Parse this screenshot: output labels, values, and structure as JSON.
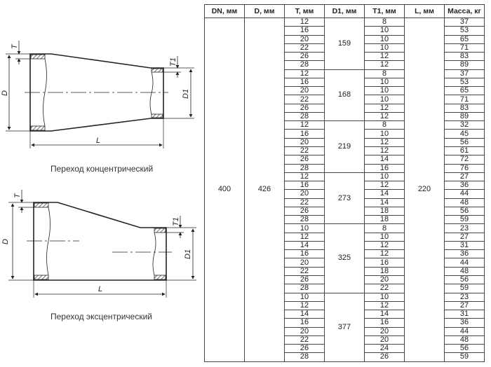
{
  "drawings": {
    "concentric": {
      "caption": "Переход концентрический",
      "labels": {
        "D": "D",
        "D1": "D1",
        "T": "T",
        "T1": "T1",
        "L": "L"
      }
    },
    "eccentric": {
      "caption": "Переход эксцентрический",
      "labels": {
        "D": "D",
        "D1": "D1",
        "T": "T",
        "T1": "T1",
        "L": "L"
      }
    }
  },
  "table": {
    "headers": [
      "DN, мм",
      "D, мм",
      "T, мм",
      "D1, мм",
      "T1, мм",
      "L, мм",
      "Масса, кг"
    ],
    "DN": "400",
    "D": "426",
    "L": "220",
    "groups": [
      {
        "D1": "159",
        "rows": [
          [
            "12",
            "8",
            "37"
          ],
          [
            "16",
            "10",
            "53"
          ],
          [
            "20",
            "10",
            "65"
          ],
          [
            "22",
            "10",
            "71"
          ],
          [
            "26",
            "12",
            "83"
          ],
          [
            "28",
            "12",
            "89"
          ]
        ]
      },
      {
        "D1": "168",
        "rows": [
          [
            "12",
            "8",
            "37"
          ],
          [
            "16",
            "10",
            "53"
          ],
          [
            "20",
            "10",
            "65"
          ],
          [
            "22",
            "10",
            "71"
          ],
          [
            "26",
            "12",
            "83"
          ],
          [
            "28",
            "12",
            "89"
          ]
        ]
      },
      {
        "D1": "219",
        "rows": [
          [
            "12",
            "8",
            "32"
          ],
          [
            "16",
            "10",
            "45"
          ],
          [
            "20",
            "12",
            "56"
          ],
          [
            "22",
            "12",
            "61"
          ],
          [
            "26",
            "14",
            "72"
          ],
          [
            "28",
            "16",
            "76"
          ]
        ]
      },
      {
        "D1": "273",
        "rows": [
          [
            "12",
            "10",
            "27"
          ],
          [
            "16",
            "12",
            "36"
          ],
          [
            "20",
            "14",
            "44"
          ],
          [
            "22",
            "14",
            "48"
          ],
          [
            "26",
            "18",
            "56"
          ],
          [
            "28",
            "18",
            "59"
          ]
        ]
      },
      {
        "D1": "325",
        "rows": [
          [
            "10",
            "8",
            "23"
          ],
          [
            "12",
            "10",
            "27"
          ],
          [
            "14",
            "12",
            "31"
          ],
          [
            "16",
            "12",
            "36"
          ],
          [
            "20",
            "16",
            "44"
          ],
          [
            "22",
            "18",
            "48"
          ],
          [
            "26",
            "20",
            "56"
          ],
          [
            "28",
            "22",
            "59"
          ]
        ]
      },
      {
        "D1": "377",
        "rows": [
          [
            "10",
            "10",
            "23"
          ],
          [
            "12",
            "12",
            "27"
          ],
          [
            "14",
            "14",
            "31"
          ],
          [
            "16",
            "16",
            "36"
          ],
          [
            "20",
            "20",
            "44"
          ],
          [
            "22",
            "20",
            "48"
          ],
          [
            "26",
            "24",
            "56"
          ],
          [
            "28",
            "26",
            "59"
          ]
        ]
      }
    ]
  }
}
